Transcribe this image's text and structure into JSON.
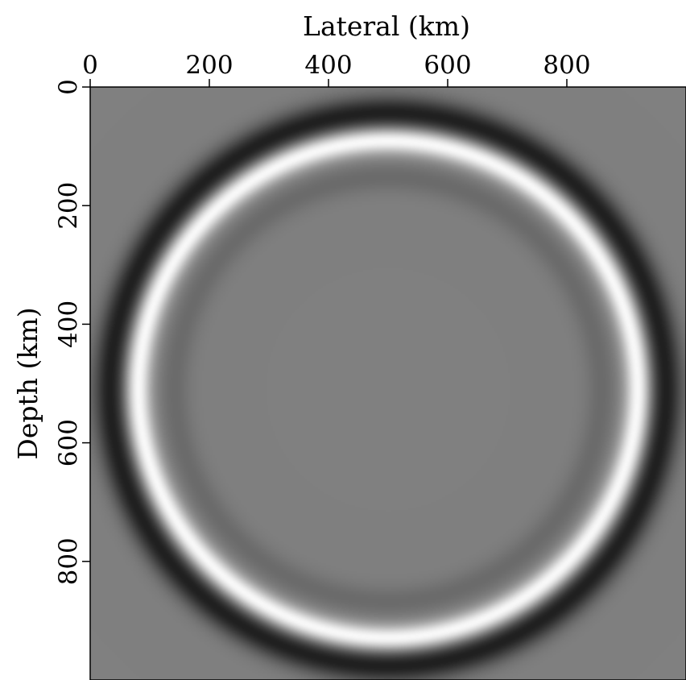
{
  "chart_data": {
    "type": "heatmap",
    "title": "",
    "xlabel": "Lateral (km)",
    "ylabel": "Depth (km)",
    "x_axis_position": "top",
    "y_axis_inverted": true,
    "xlim": [
      0,
      1000
    ],
    "ylim": [
      0,
      1000
    ],
    "x_ticks": [
      "0",
      "200",
      "400",
      "600",
      "800"
    ],
    "y_ticks": [
      "0",
      "200",
      "400",
      "600",
      "800"
    ],
    "colormap": "grayscale",
    "background_level": 0.5,
    "wavefront": {
      "center_x": 500,
      "center_y": 510,
      "radius": 420,
      "peak_level": 1.0,
      "trough_outer_level": 0.12,
      "trough_inner_level": 0.42
    },
    "grid": false,
    "legend": "none"
  }
}
